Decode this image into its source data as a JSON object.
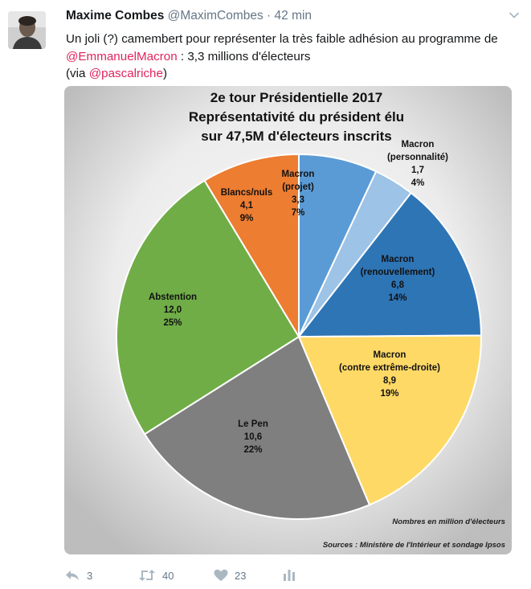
{
  "tweet": {
    "author_name": "Maxime Combes",
    "handle": "@MaximCombes",
    "separator": "·",
    "time": "42 min",
    "text_part1": "Un joli (?) camembert pour représenter la très faible adhésion au programme de ",
    "mention1": "@EmmanuelMacron",
    "text_part2": " : 3,3 millions d'électeurs",
    "via_open": "(via ",
    "mention2": "@pascalriche",
    "via_close": ")"
  },
  "actions": {
    "reply_count": "3",
    "retweet_count": "40",
    "like_count": "23"
  },
  "icons": {
    "reply": "reply-icon",
    "retweet": "retweet-icon",
    "like": "heart-icon",
    "analytics": "analytics-icon",
    "menu": "chevron-down-icon"
  },
  "colors": {
    "mention": "#e0245e",
    "secondary_text": "#657786",
    "icon": "#aab8c2",
    "card_background_outer": "#bcbcbc",
    "card_background_inner": "#f7f7f7"
  },
  "chart_data": {
    "type": "pie",
    "title_lines": [
      "2e tour Présidentielle 2017",
      "Représentativité du président élu",
      "sur 47,5M d'électeurs inscrits"
    ],
    "slices": [
      {
        "label_lines": [
          "Macron",
          "(projet)"
        ],
        "value": 3.3,
        "value_text": "3,3",
        "percent_text": "7%",
        "color": "#5b9bd5"
      },
      {
        "label_lines": [
          "Macron",
          "(personnalité)"
        ],
        "value": 1.7,
        "value_text": "1,7",
        "percent_text": "4%",
        "color": "#9dc3e6"
      },
      {
        "label_lines": [
          "Macron",
          "(renouvellement)"
        ],
        "value": 6.8,
        "value_text": "6,8",
        "percent_text": "14%",
        "color": "#2e75b6"
      },
      {
        "label_lines": [
          "Macron",
          "(contre extrême-droite)"
        ],
        "value": 8.9,
        "value_text": "8,9",
        "percent_text": "19%",
        "color": "#ffd966"
      },
      {
        "label_lines": [
          "Le Pen"
        ],
        "value": 10.6,
        "value_text": "10,6",
        "percent_text": "22%",
        "color": "#7f7f7f"
      },
      {
        "label_lines": [
          "Abstention"
        ],
        "value": 12.0,
        "value_text": "12,0",
        "percent_text": "25%",
        "color": "#70ad47"
      },
      {
        "label_lines": [
          "Blancs/nuls"
        ],
        "value": 4.1,
        "value_text": "4,1",
        "percent_text": "9%",
        "color": "#ed7d31"
      }
    ],
    "unit_note": "Nombres en million d'électeurs",
    "source": "Sources : Ministère de l'Intérieur et sondage Ipsos"
  }
}
